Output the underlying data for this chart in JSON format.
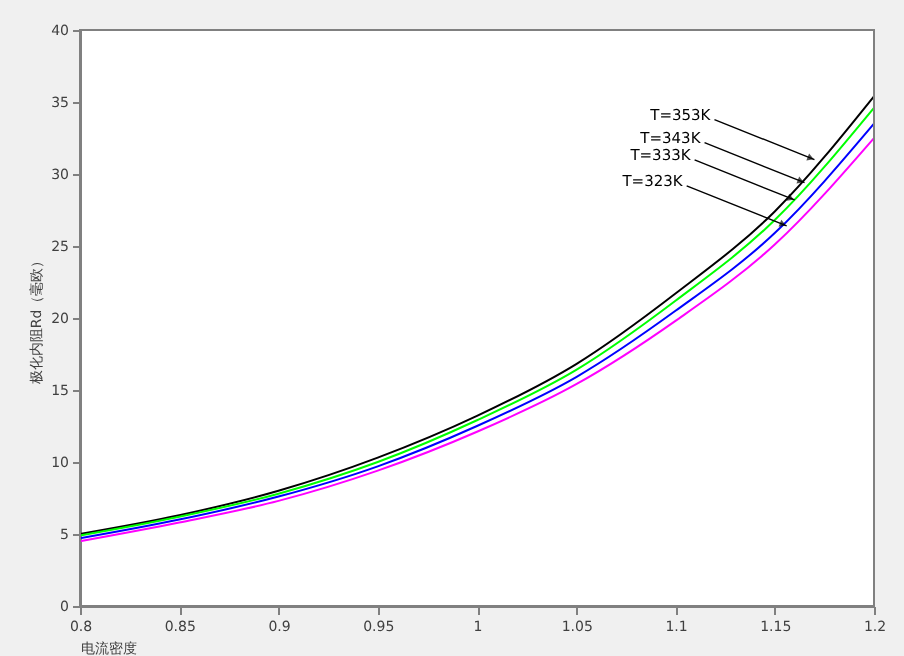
{
  "chart_data": {
    "type": "line",
    "xlabel": "电流密度",
    "ylabel": "极化内阻Rd（毫欧）",
    "x": [
      0.8,
      0.85,
      0.9,
      0.95,
      1.0,
      1.05,
      1.1,
      1.15,
      1.2
    ],
    "series": [
      {
        "color": "#000000",
        "values": [
          5.0,
          6.3,
          8.0,
          10.3,
          13.2,
          16.8,
          21.7,
          27.4,
          35.4
        ]
      },
      {
        "color": "#00ff00",
        "values": [
          4.9,
          6.2,
          7.8,
          10.0,
          12.9,
          16.4,
          21.2,
          26.8,
          34.6
        ]
      },
      {
        "color": "#0000ff",
        "values": [
          4.7,
          6.0,
          7.6,
          9.7,
          12.5,
          15.9,
          20.5,
          25.9,
          33.5
        ]
      },
      {
        "color": "#ff00ff",
        "values": [
          4.5,
          5.8,
          7.3,
          9.4,
          12.1,
          15.4,
          19.8,
          25.1,
          32.5
        ]
      }
    ],
    "annotations": [
      {
        "text": "T=353K",
        "x": 1.17,
        "y": 31.0
      },
      {
        "text": "T=343K",
        "x": 1.165,
        "y": 29.4
      },
      {
        "text": "T=333K",
        "x": 1.16,
        "y": 28.2
      },
      {
        "text": "T=323K",
        "x": 1.156,
        "y": 26.4
      }
    ],
    "xlim": [
      0.8,
      1.2
    ],
    "ylim": [
      0,
      40
    ],
    "xticks": [
      0.8,
      0.85,
      0.9,
      0.95,
      1.0,
      1.05,
      1.1,
      1.15,
      1.2
    ],
    "yticks": [
      0,
      5,
      10,
      15,
      20,
      25,
      30,
      35,
      40
    ],
    "grid": false,
    "marker": "none",
    "line_style": "solid"
  }
}
